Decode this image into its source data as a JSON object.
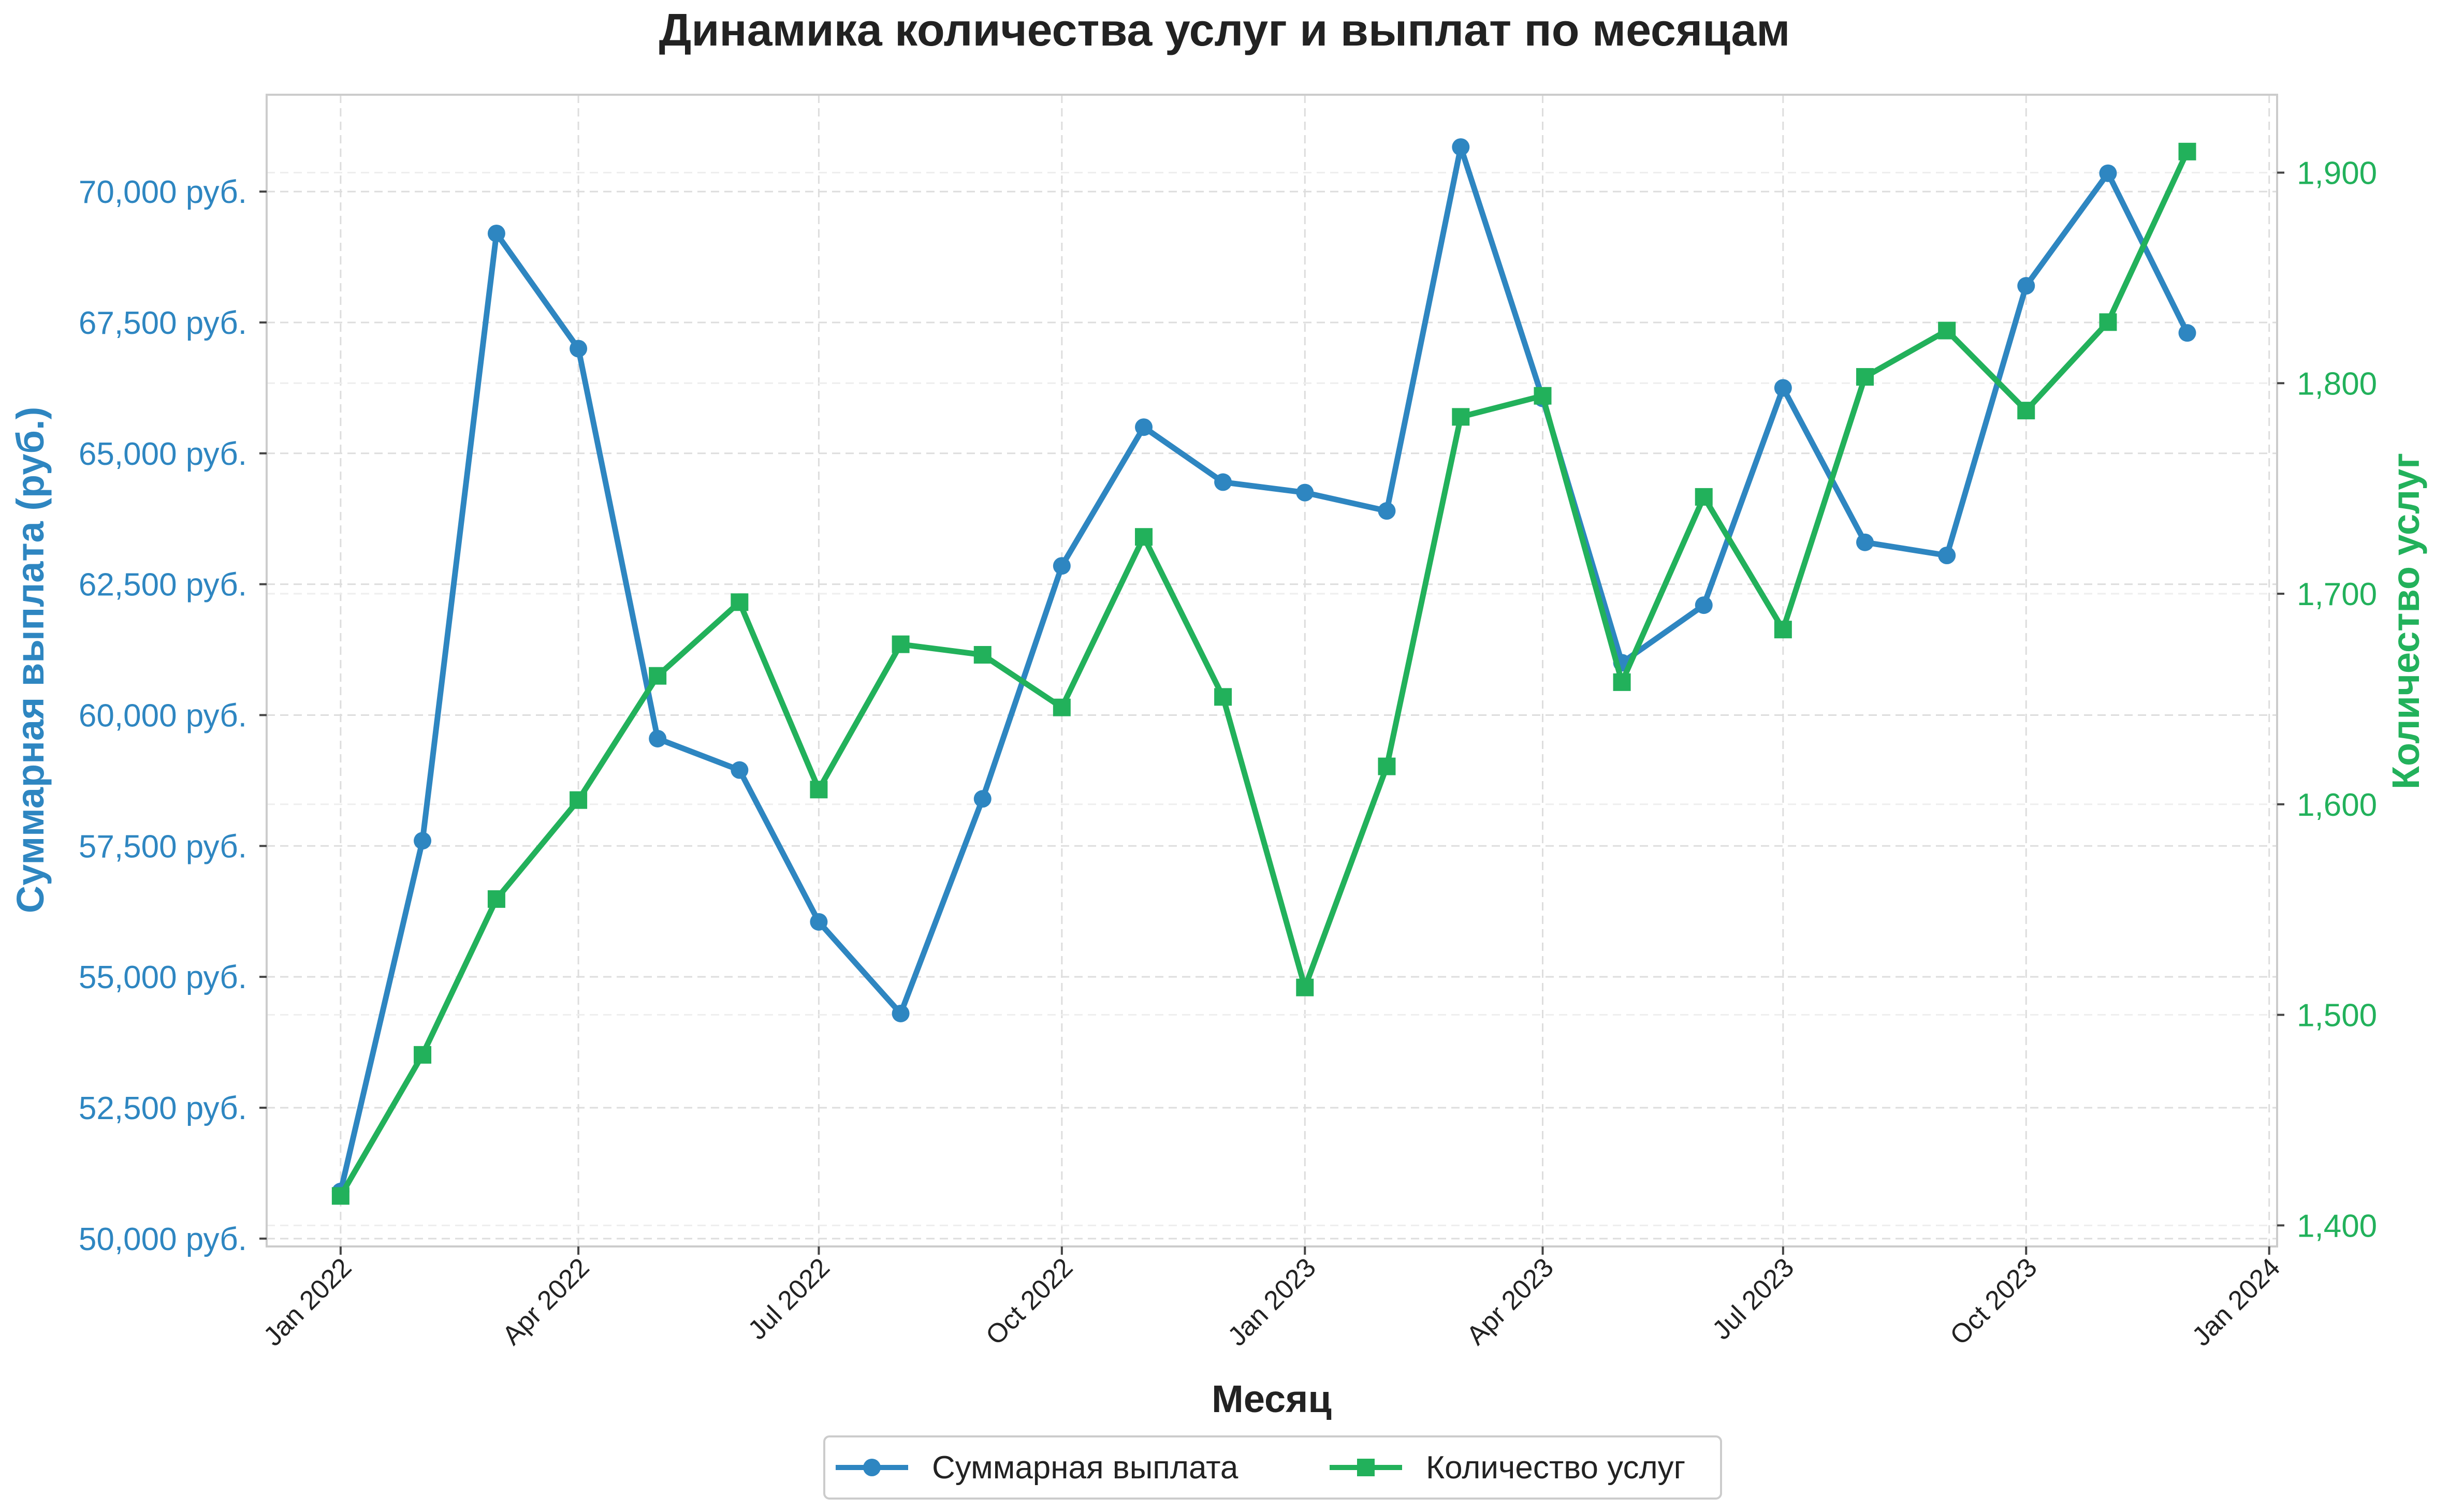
{
  "colors": {
    "payout": "#2e86c1",
    "count": "#22b15b",
    "grid": "#dddddd",
    "axis": "#cccccc",
    "text": "#222222"
  },
  "chart_data": {
    "type": "line",
    "title": "Динамика количества услуг и выплат по месяцам",
    "xlabel": "Месяц",
    "ylabel_left": "Суммарная выплата (руб.)",
    "ylabel_right": "Количество услуг",
    "x": [
      "2022-01",
      "2022-02",
      "2022-03",
      "2022-04",
      "2022-05",
      "2022-06",
      "2022-07",
      "2022-08",
      "2022-09",
      "2022-10",
      "2022-11",
      "2022-12",
      "2023-01",
      "2023-02",
      "2023-03",
      "2023-04",
      "2023-05",
      "2023-06",
      "2023-07",
      "2023-08",
      "2023-09",
      "2023-10",
      "2023-11",
      "2023-12"
    ],
    "x_ticks": [
      "Jan 2022",
      "Apr 2022",
      "Jul 2022",
      "Oct 2022",
      "Jan 2023",
      "Apr 2023",
      "Jul 2023",
      "Oct 2023",
      "Jan 2024"
    ],
    "xlim": [
      "2021-12-04",
      "2024-01-04"
    ],
    "series": [
      {
        "name": "Суммарная выплата",
        "axis": "left",
        "marker": "circle",
        "color": "#2e86c1",
        "values": [
          50900,
          57600,
          69200,
          67000,
          59550,
          58950,
          56050,
          54300,
          58400,
          62850,
          65500,
          64450,
          64250,
          63900,
          70850,
          66050,
          61000,
          62100,
          66250,
          63300,
          63050,
          68200,
          70350,
          67300
        ]
      },
      {
        "name": "Количество услуг",
        "axis": "right",
        "marker": "square",
        "color": "#22b15b",
        "values": [
          1414,
          1481,
          1555,
          1602,
          1661,
          1696,
          1607,
          1676,
          1671,
          1646,
          1727,
          1651,
          1513,
          1618,
          1784,
          1794,
          1658,
          1746,
          1683,
          1803,
          1825,
          1787,
          1829,
          1910
        ]
      }
    ],
    "ylim_left": [
      49850,
      71850
    ],
    "ylim_right": [
      1390,
      1937
    ],
    "y_ticks_left": [
      "50,000 руб.",
      "52,500 руб.",
      "55,000 руб.",
      "57,500 руб.",
      "60,000 руб.",
      "62,500 руб.",
      "65,000 руб.",
      "67,500 руб.",
      "70,000 руб."
    ],
    "y_ticks_right": [
      "1,400",
      "1,500",
      "1,600",
      "1,700",
      "1,800",
      "1,900"
    ],
    "grid": true,
    "legend": "bottom-center"
  }
}
